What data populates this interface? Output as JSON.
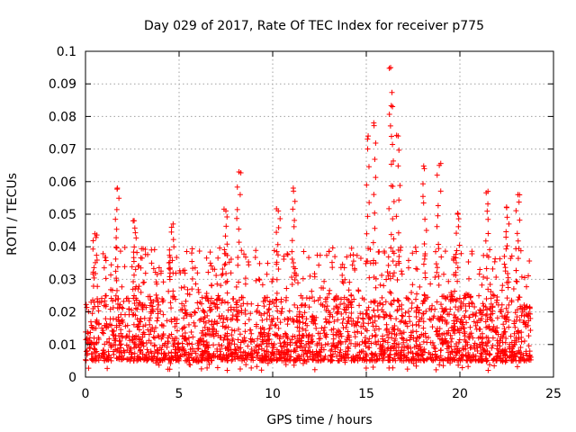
{
  "chart_data": {
    "type": "scatter",
    "title": "Day 029 of 2017, Rate Of TEC Index for receiver p775",
    "xlabel": "GPS time / hours",
    "ylabel": "ROTI / TECUs",
    "xlim": [
      0,
      25
    ],
    "ylim": [
      0,
      0.1
    ],
    "xticks": [
      0,
      5,
      10,
      15,
      20,
      25
    ],
    "xtick_labels": [
      "0",
      "5",
      "10",
      "15",
      "20",
      "25"
    ],
    "yticks": [
      0,
      0.01,
      0.02,
      0.03,
      0.04,
      0.05,
      0.06,
      0.07,
      0.08,
      0.09,
      0.1
    ],
    "ytick_labels": [
      "0",
      "0.01",
      "0.02",
      "0.03",
      "0.04",
      "0.05",
      "0.06",
      "0.07",
      "0.08",
      "0.09",
      "0.1"
    ],
    "grid": true,
    "marker": "+",
    "color": "#ff0000",
    "series": [
      {
        "name": "ROTI",
        "time_range_hours": [
          0,
          23.8
        ],
        "typical_band": [
          0.005,
          0.025
        ],
        "peaks": [
          {
            "x": 1.7,
            "y": 0.058
          },
          {
            "x": 0.5,
            "y": 0.044
          },
          {
            "x": 2.6,
            "y": 0.048
          },
          {
            "x": 4.6,
            "y": 0.046
          },
          {
            "x": 8.2,
            "y": 0.063
          },
          {
            "x": 7.5,
            "y": 0.051
          },
          {
            "x": 10.3,
            "y": 0.051
          },
          {
            "x": 11.1,
            "y": 0.058
          },
          {
            "x": 15.4,
            "y": 0.078
          },
          {
            "x": 15.1,
            "y": 0.074
          },
          {
            "x": 16.3,
            "y": 0.095
          },
          {
            "x": 16.4,
            "y": 0.083
          },
          {
            "x": 16.7,
            "y": 0.074
          },
          {
            "x": 18.1,
            "y": 0.064
          },
          {
            "x": 18.9,
            "y": 0.065
          },
          {
            "x": 19.9,
            "y": 0.05
          },
          {
            "x": 21.5,
            "y": 0.057
          },
          {
            "x": 23.1,
            "y": 0.056
          },
          {
            "x": 22.5,
            "y": 0.052
          }
        ]
      }
    ]
  }
}
